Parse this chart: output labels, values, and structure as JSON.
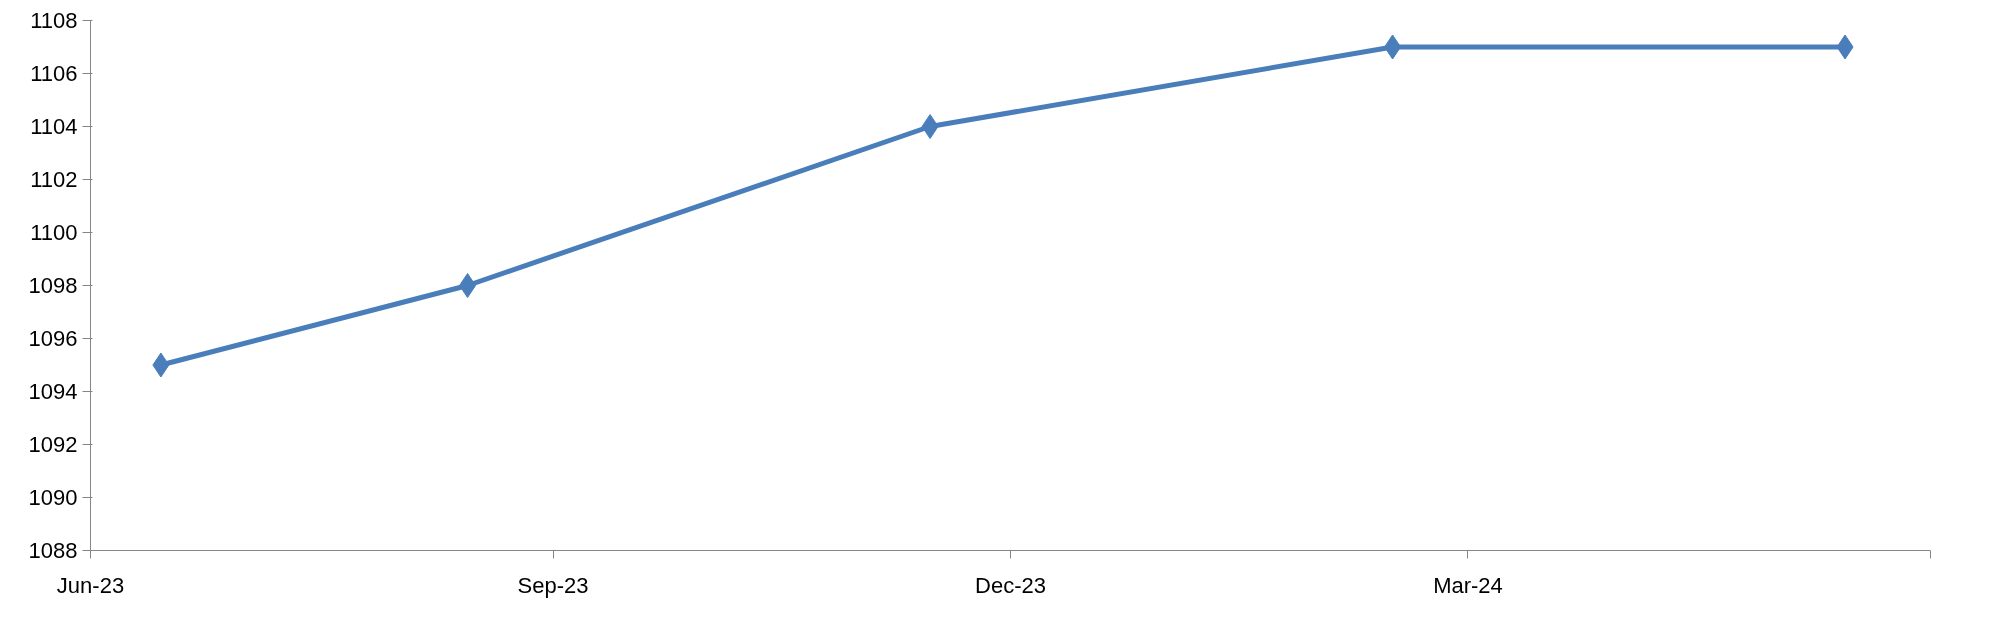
{
  "chart_data": {
    "type": "line",
    "x": [
      "2023-06-15",
      "2023-08-15",
      "2023-11-15",
      "2024-02-15",
      "2024-05-15"
    ],
    "series": [
      {
        "color": "#4a7ebb",
        "values": [
          1095,
          1098,
          1104,
          1107,
          1107
        ]
      }
    ],
    "xlim": [
      "2023-06-01",
      "2024-06-01"
    ],
    "xticks": [
      {
        "value": "2023-06-01",
        "label": "Jun-23"
      },
      {
        "value": "2023-09-01",
        "label": "Sep-23"
      },
      {
        "value": "2023-12-01",
        "label": "Dec-23"
      },
      {
        "value": "2024-03-01",
        "label": "Mar-24"
      },
      {
        "value": "2024-06-01",
        "label": null
      }
    ],
    "ylim": [
      1088,
      1108
    ],
    "yticks": [
      1088,
      1090,
      1092,
      1094,
      1096,
      1098,
      1100,
      1102,
      1104,
      1106,
      1108
    ],
    "grid": false,
    "marker": "diamond",
    "line_style": "solid"
  }
}
